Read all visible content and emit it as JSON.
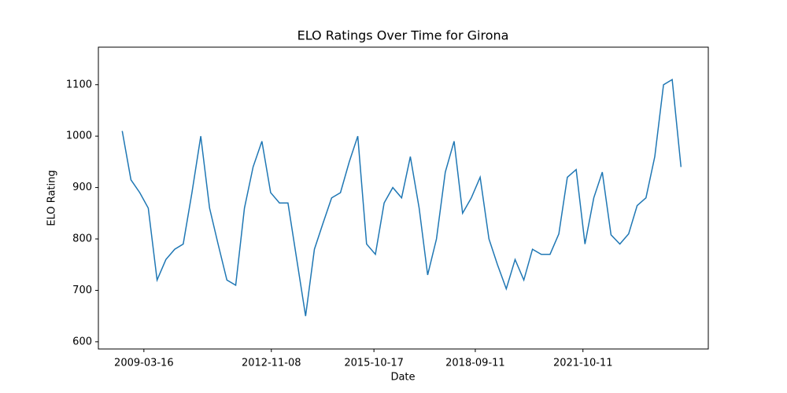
{
  "chart_data": {
    "type": "line",
    "title": "ELO Ratings Over Time for Girona",
    "x_label": "Date",
    "y_label": "ELO Rating",
    "x": [
      "2008-08-01",
      "2008-11-01",
      "2009-02-01",
      "2009-05-01",
      "2009-08-01",
      "2009-11-01",
      "2010-02-01",
      "2010-05-01",
      "2010-08-01",
      "2010-11-01",
      "2011-02-01",
      "2011-05-01",
      "2011-08-01",
      "2011-11-01",
      "2012-02-01",
      "2012-05-01",
      "2012-08-01",
      "2012-11-01",
      "2013-02-01",
      "2013-05-01",
      "2013-08-01",
      "2013-11-01",
      "2014-02-01",
      "2014-05-01",
      "2014-08-01",
      "2014-11-01",
      "2015-02-01",
      "2015-05-01",
      "2015-08-01",
      "2015-11-01",
      "2016-02-01",
      "2016-05-01",
      "2016-08-01",
      "2016-11-01",
      "2017-02-01",
      "2017-05-01",
      "2017-08-01",
      "2017-11-01",
      "2018-02-01",
      "2018-05-01",
      "2018-08-01",
      "2018-11-01",
      "2019-02-01",
      "2019-05-01",
      "2019-08-01",
      "2019-11-01",
      "2020-02-01",
      "2020-05-01",
      "2020-08-01",
      "2020-11-01",
      "2021-02-01",
      "2021-05-01",
      "2021-08-01",
      "2021-11-01",
      "2022-02-01",
      "2022-05-01",
      "2022-08-01",
      "2022-11-01",
      "2023-02-01",
      "2023-05-01",
      "2023-08-01",
      "2023-11-01",
      "2024-02-01",
      "2024-05-01",
      "2024-08-01"
    ],
    "values": [
      1010,
      915,
      890,
      860,
      720,
      760,
      780,
      790,
      890,
      1000,
      860,
      790,
      720,
      710,
      860,
      940,
      990,
      890,
      870,
      870,
      760,
      650,
      780,
      830,
      880,
      890,
      950,
      1000,
      790,
      770,
      870,
      900,
      880,
      960,
      860,
      730,
      800,
      930,
      990,
      850,
      880,
      920,
      800,
      750,
      703,
      760,
      720,
      780,
      770,
      770,
      810,
      920,
      935,
      790,
      880,
      930,
      808,
      790,
      810,
      865,
      880,
      960,
      1100,
      1110,
      940
    ],
    "color": "#1f77b4",
    "xlim": [
      "2007-11-26",
      "2025-05-14"
    ],
    "xticks": [
      "2009-03-16",
      "2012-11-08",
      "2015-10-17",
      "2018-09-11",
      "2021-10-11"
    ],
    "ylim": [
      586,
      1173
    ],
    "yticks": [
      600,
      700,
      800,
      900,
      1000,
      1100
    ]
  }
}
